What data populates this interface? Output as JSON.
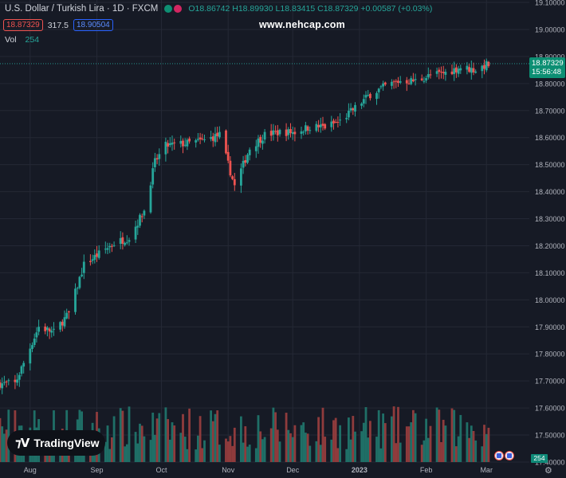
{
  "header": {
    "title": "U.S. Dollar / Turkish Lira · 1D · FXCM",
    "open": "O18.86742",
    "high": "H18.89930",
    "low": "L18.83415",
    "close": "C18.87329",
    "change": "+0.00587 (+0.03%)",
    "sell_price": "18.87329",
    "spread": "317.5",
    "buy_price": "18.90504",
    "vol_label": "Vol",
    "vol_value": "254"
  },
  "watermark": "www.nehcap.com",
  "brand": "TradingView",
  "last_price_label": "18.87329",
  "countdown": "15:56:48",
  "volume_badge": "254",
  "colors": {
    "background": "#161a25",
    "up": "#26a69a",
    "down": "#ef5350",
    "grid": "#242835",
    "price_badge": "#0c8f73"
  },
  "icons": [
    "tradingview-logo-icon",
    "flag-icon",
    "settings-gear-icon"
  ],
  "chart_data": {
    "type": "candlestick",
    "symbol": "USDTRY",
    "timeframe": "1D",
    "y_axis_ticks": [
      "19.10000",
      "19.00000",
      "18.90000",
      "18.80000",
      "18.70000",
      "18.60000",
      "18.50000",
      "18.40000",
      "18.30000",
      "18.20000",
      "18.10000",
      "18.00000",
      "17.90000",
      "17.80000",
      "17.70000",
      "17.60000",
      "17.50000",
      "17.40000"
    ],
    "ylim": [
      17.4,
      19.1
    ],
    "x_axis_labels": [
      "Aug",
      "Sep",
      "Oct",
      "Nov",
      "Dec",
      "2023",
      "Feb",
      "Mar"
    ],
    "series": [
      {
        "name": "USDTRY",
        "close_anchors": [
          {
            "date": "2022-07-25",
            "close": 17.69
          },
          {
            "date": "2022-08-05",
            "close": 17.9
          },
          {
            "date": "2022-08-12",
            "close": 17.88
          },
          {
            "date": "2022-08-19",
            "close": 17.95
          },
          {
            "date": "2022-08-26",
            "close": 18.13
          },
          {
            "date": "2022-09-09",
            "close": 18.21
          },
          {
            "date": "2022-09-16",
            "close": 18.23
          },
          {
            "date": "2022-09-23",
            "close": 18.33
          },
          {
            "date": "2022-09-28",
            "close": 18.51
          },
          {
            "date": "2022-10-03",
            "close": 18.57
          },
          {
            "date": "2022-10-14",
            "close": 18.58
          },
          {
            "date": "2022-10-21",
            "close": 18.59
          },
          {
            "date": "2022-10-28",
            "close": 18.61
          },
          {
            "date": "2022-11-04",
            "close": 18.42
          },
          {
            "date": "2022-11-11",
            "close": 18.56
          },
          {
            "date": "2022-11-18",
            "close": 18.61
          },
          {
            "date": "2022-11-25",
            "close": 18.62
          },
          {
            "date": "2022-12-02",
            "close": 18.62
          },
          {
            "date": "2022-12-09",
            "close": 18.64
          },
          {
            "date": "2022-12-16",
            "close": 18.64
          },
          {
            "date": "2022-12-23",
            "close": 18.66
          },
          {
            "date": "2022-12-30",
            "close": 18.71
          },
          {
            "date": "2023-01-06",
            "close": 18.76
          },
          {
            "date": "2023-01-13",
            "close": 18.79
          },
          {
            "date": "2023-01-20",
            "close": 18.81
          },
          {
            "date": "2023-01-27",
            "close": 18.81
          },
          {
            "date": "2023-02-03",
            "close": 18.83
          },
          {
            "date": "2023-02-10",
            "close": 18.84
          },
          {
            "date": "2023-02-17",
            "close": 18.86
          },
          {
            "date": "2023-02-24",
            "close": 18.85
          },
          {
            "date": "2023-03-01",
            "close": 18.87
          }
        ]
      },
      {
        "name": "Vol",
        "type": "bar",
        "last_value": 254
      }
    ]
  }
}
